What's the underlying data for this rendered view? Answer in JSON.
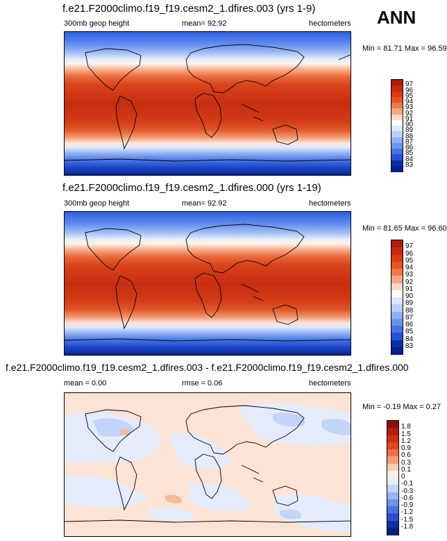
{
  "season": "ANN",
  "panels": [
    {
      "title": "f.e21.F2000climo.f19_f19.cesm2_1.dfires.003 (yrs 1-9)",
      "variable": "300mb geop height",
      "stat": "mean=  92.92",
      "units": "hectometers",
      "minmax": "Min = 81.71 Max = 96.59",
      "levels": [
        "97",
        "96",
        "95",
        "94",
        "93",
        "92",
        "91",
        "90",
        "89",
        "88",
        "87",
        "86",
        "85",
        "84",
        "83"
      ],
      "colors": [
        "#b11a0e",
        "#c8290f",
        "#d83a13",
        "#e55422",
        "#ee7a4b",
        "#f6a784",
        "#fcd9c8",
        "#ffffff",
        "#dbe6fb",
        "#b9cef7",
        "#8fb0f1",
        "#6d92eb",
        "#4674e4",
        "#2452d6",
        "#0b2ea7",
        "#04208a"
      ]
    },
    {
      "title": "f.e21.F2000climo.f19_f19.cesm2_1.dfires.000 (yrs 1-19)",
      "variable": "300mb geop height",
      "stat": "mean=  92.92",
      "units": "hectometers",
      "minmax": "Min = 81.65 Max = 96.60",
      "levels": [
        "97",
        "96",
        "95",
        "94",
        "93",
        "92",
        "91",
        "90",
        "89",
        "88",
        "87",
        "86",
        "85",
        "84",
        "83"
      ],
      "colors": [
        "#b11a0e",
        "#c8290f",
        "#d83a13",
        "#e55422",
        "#ee7a4b",
        "#f6a784",
        "#fcd9c8",
        "#ffffff",
        "#dbe6fb",
        "#b9cef7",
        "#8fb0f1",
        "#6d92eb",
        "#4674e4",
        "#2452d6",
        "#0b2ea7",
        "#04208a"
      ]
    },
    {
      "title": "f.e21.F2000climo.f19_f19.cesm2_1.dfires.003 - f.e21.F2000climo.f19_f19.cesm2_1.dfires.000",
      "stat_left": "mean =   0.00",
      "stat": "rmse =  0.06",
      "units": "hectometers",
      "minmax": "Min = -0.19 Max =   0.27",
      "levels": [
        "1.8",
        "1.5",
        "1.2",
        "0.9",
        "0.6",
        "0.3",
        "0.1",
        "0",
        "-0.1",
        "-0.3",
        "-0.6",
        "-0.9",
        "-1.2",
        "-1.5",
        "-1.8"
      ],
      "colors": [
        "#8b0f0b",
        "#b01c10",
        "#cc2e14",
        "#de4a20",
        "#ea7048",
        "#f39b78",
        "#fbcdb5",
        "#fdeee5",
        "#e6eefc",
        "#c2d4f7",
        "#98b5f1",
        "#6f93e9",
        "#4a71df",
        "#2b50cf",
        "#13309f",
        "#08207c"
      ]
    }
  ],
  "chart_data": [
    {
      "type": "heatmap",
      "title": "f.e21.F2000climo.f19_f19.cesm2_1.dfires.003 (yrs 1-9)",
      "variable": "300mb geop height",
      "units": "hectometers",
      "mean": 92.92,
      "min": 81.71,
      "max": 96.59,
      "contour_levels": [
        83,
        84,
        85,
        86,
        87,
        88,
        89,
        90,
        91,
        92,
        93,
        94,
        95,
        96,
        97
      ]
    },
    {
      "type": "heatmap",
      "title": "f.e21.F2000climo.f19_f19.cesm2_1.dfires.000 (yrs 1-19)",
      "variable": "300mb geop height",
      "units": "hectometers",
      "mean": 92.92,
      "min": 81.65,
      "max": 96.6,
      "contour_levels": [
        83,
        84,
        85,
        86,
        87,
        88,
        89,
        90,
        91,
        92,
        93,
        94,
        95,
        96,
        97
      ]
    },
    {
      "type": "heatmap",
      "title": "f.e21.F2000climo.f19_f19.cesm2_1.dfires.003 - f.e21.F2000climo.f19_f19.cesm2_1.dfires.000",
      "units": "hectometers",
      "mean": 0.0,
      "rmse": 0.06,
      "min": -0.19,
      "max": 0.27,
      "contour_levels": [
        -1.8,
        -1.5,
        -1.2,
        -0.9,
        -0.6,
        -0.3,
        -0.1,
        0,
        0.1,
        0.3,
        0.6,
        0.9,
        1.2,
        1.5,
        1.8
      ]
    }
  ]
}
